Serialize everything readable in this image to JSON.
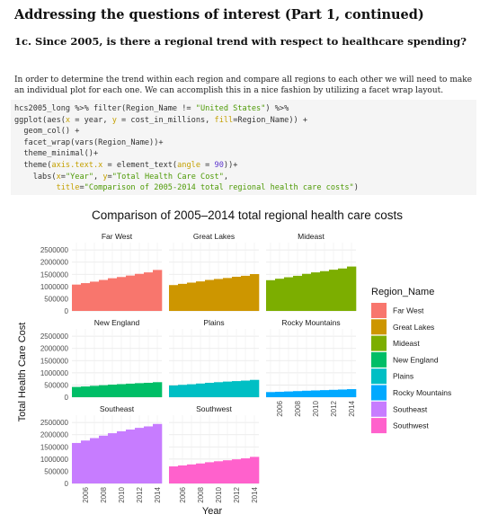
{
  "heading": "Addressing the questions of interest (Part 1, continued)",
  "subheading": "1c. Since 2005, is there a regional trend with respect to healthcare spending?",
  "intro": "In order to determine the trend within each region and compare all regions to each other we will need to make an individual plot for each one. We can accomplish this in a nice fashion by utilizing a facet wrap layout.",
  "code_lines": [
    "hcs2005_long %>% filter(Region_Name != \"United States\") %>%",
    "ggplot(aes(x = year, y = cost_in_millions, fill=Region_Name)) +",
    "  geom_col() +",
    "  facet_wrap(vars(Region_Name))+",
    "  theme_minimal()+",
    "  theme(axis.text.x = element_text(angle = 90))+",
    "    labs(x=\"Year\", y=\"Total Health Care Cost\",",
    "         title=\"Comparison of 2005-2014 total regional health care costs\")"
  ],
  "chart_data": {
    "type": "bar",
    "title": "Comparison of 2005–2014 total regional health care costs",
    "xlabel": "Year",
    "ylabel": "Total Health Care Cost",
    "x": [
      2005,
      2006,
      2007,
      2008,
      2009,
      2010,
      2011,
      2012,
      2013,
      2014
    ],
    "x_tick_labels": [
      "2006",
      "2008",
      "2010",
      "2012",
      "2014"
    ],
    "y_tick_labels": [
      "0",
      "500000",
      "1000000",
      "1500000",
      "2000000",
      "2500000"
    ],
    "ylim": [
      0,
      2800000
    ],
    "grid": true,
    "legend_title": "Region_Name",
    "legend_position": "right",
    "series": [
      {
        "name": "Far West",
        "color": "#F8766D",
        "values": [
          1080000,
          1140000,
          1200000,
          1270000,
          1340000,
          1390000,
          1450000,
          1520000,
          1580000,
          1680000
        ]
      },
      {
        "name": "Great Lakes",
        "color": "#CD9600",
        "values": [
          1060000,
          1110000,
          1160000,
          1210000,
          1270000,
          1310000,
          1350000,
          1400000,
          1440000,
          1510000
        ]
      },
      {
        "name": "Mideast",
        "color": "#7CAE00",
        "values": [
          1260000,
          1320000,
          1380000,
          1440000,
          1520000,
          1580000,
          1630000,
          1690000,
          1740000,
          1820000
        ]
      },
      {
        "name": "New England",
        "color": "#00BE67",
        "values": [
          420000,
          440000,
          465000,
          490000,
          515000,
          535000,
          555000,
          575000,
          590000,
          615000
        ]
      },
      {
        "name": "Plains",
        "color": "#00BFC4",
        "values": [
          480000,
          505000,
          530000,
          560000,
          590000,
          615000,
          640000,
          660000,
          680000,
          710000
        ]
      },
      {
        "name": "Rocky Mountains",
        "color": "#00A9FF",
        "values": [
          210000,
          222000,
          235000,
          250000,
          265000,
          277000,
          290000,
          302000,
          314000,
          330000
        ]
      },
      {
        "name": "Southeast",
        "color": "#C77CFF",
        "values": [
          1660000,
          1760000,
          1860000,
          1960000,
          2060000,
          2140000,
          2210000,
          2280000,
          2340000,
          2440000
        ]
      },
      {
        "name": "Southwest",
        "color": "#FF61CC",
        "values": [
          700000,
          740000,
          780000,
          820000,
          870000,
          910000,
          950000,
          990000,
          1030000,
          1090000
        ]
      }
    ]
  }
}
